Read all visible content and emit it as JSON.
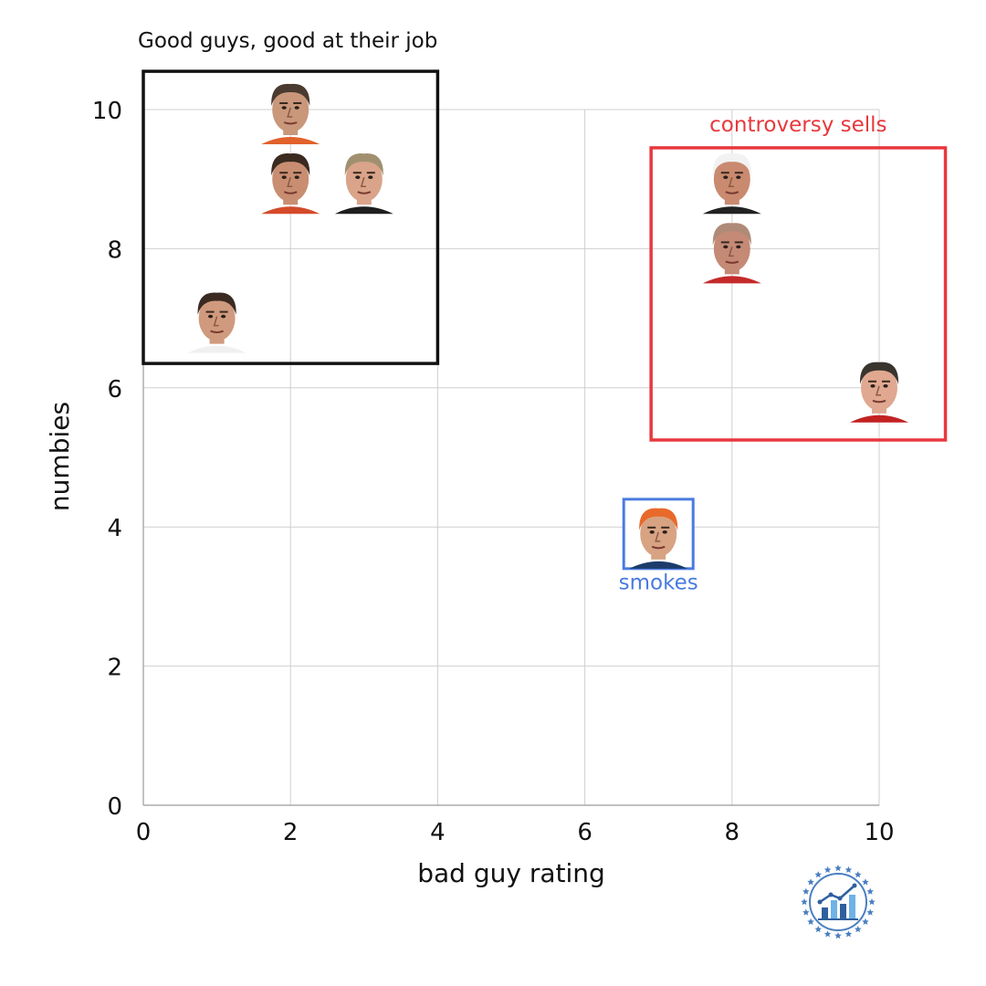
{
  "chart_data": {
    "type": "scatter",
    "xlabel": "bad guy rating",
    "ylabel": "numbies",
    "xlim": [
      0,
      10
    ],
    "ylim": [
      0,
      10
    ],
    "xticks": [
      "0",
      "2",
      "4",
      "6",
      "8",
      "10"
    ],
    "yticks": [
      "0",
      "2",
      "4",
      "6",
      "8",
      "10"
    ],
    "grid": true,
    "points": [
      {
        "x": 2.0,
        "y": 10.0,
        "group": "good",
        "skin": "#c9977a",
        "hair": "#4a3a30",
        "shirt": "#e2622c"
      },
      {
        "x": 2.0,
        "y": 9.0,
        "group": "good",
        "skin": "#c98e72",
        "hair": "#3a2a20",
        "shirt": "#d44a2a"
      },
      {
        "x": 3.0,
        "y": 9.0,
        "group": "good",
        "skin": "#d9a48a",
        "hair": "#a09070",
        "shirt": "#1e1e1e"
      },
      {
        "x": 1.0,
        "y": 7.0,
        "group": "good",
        "skin": "#d09a7e",
        "hair": "#3a2a22",
        "shirt": "#f0f0f0"
      },
      {
        "x": 8.0,
        "y": 9.0,
        "group": "controversy",
        "skin": "#c98a70",
        "hair": "#f2f2f2",
        "shirt": "#222222"
      },
      {
        "x": 8.0,
        "y": 8.0,
        "group": "controversy",
        "skin": "#c48a76",
        "hair": "#b08a78",
        "shirt": "#c42a2a"
      },
      {
        "x": 10.0,
        "y": 6.0,
        "group": "controversy",
        "skin": "#e0a890",
        "hair": "#3a342e",
        "shirt": "#c22222"
      },
      {
        "x": 7.0,
        "y": 3.9,
        "group": "smokes",
        "skin": "#d7a383",
        "hair": "#e86a2a",
        "shirt": "#1c3c6c"
      }
    ],
    "groups": [
      {
        "id": "good",
        "label": "Good guys, good at their job",
        "color": "#111111",
        "x_range": [
          0,
          4
        ],
        "y_range": [
          6.35,
          10.55
        ]
      },
      {
        "id": "controversy",
        "label": "controversy sells",
        "color": "#e8383d",
        "x_range": [
          6.9,
          10.9
        ],
        "y_range": [
          5.25,
          9.45
        ]
      },
      {
        "id": "smokes",
        "label": "smokes",
        "color": "#4a7be0",
        "x_range": [
          6.6,
          7.4
        ],
        "y_range": [
          3.5,
          4.5
        ]
      }
    ]
  },
  "logo": {
    "name": "stats-logo-icon",
    "color": "#4a7fc1"
  }
}
